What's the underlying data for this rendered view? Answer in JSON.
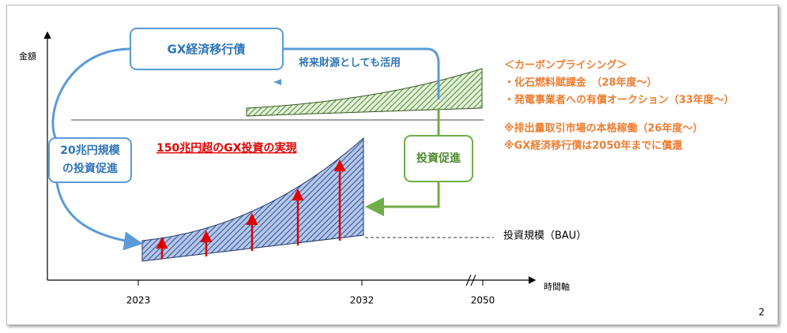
{
  "axes": {
    "y_label": "金額",
    "x_label": "時間軸",
    "x_ticks": [
      "2023",
      "2032",
      "2050"
    ]
  },
  "boxes": {
    "bond": "GX経済移行債",
    "promotion_left": [
      "20兆円規模",
      "の投資促進"
    ],
    "promotion_right": "投資促進"
  },
  "labels": {
    "future_funding": "将来財源としても活用",
    "investment": "150兆円超のGX投資の実現",
    "bau": "投資規模（BAU）"
  },
  "notes": {
    "carbon_pricing": [
      "＜カーボンプライシング＞",
      "・化石燃料賦課金　（28年度～）",
      "・発電事業者への有償オークション（33年度～）"
    ],
    "remarks": [
      "※排出量取引市場の本格稼働（26年度～）",
      "※GX経済移行債は2050年までに償還"
    ]
  },
  "page_number": "2"
}
